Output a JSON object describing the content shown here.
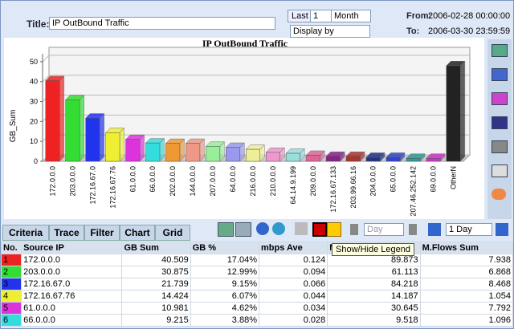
{
  "toolbar": {
    "title_label": "Title:",
    "title_value": "IP OutBound Traffic",
    "last_button": "Last",
    "count": "1",
    "period": "Month",
    "display_by": "Display by",
    "from_label": "From:",
    "from_value": "2006-02-28 00:00:00",
    "to_label": "To:",
    "to_value": "2006-03-30 23:59:59"
  },
  "chart_data": {
    "type": "bar",
    "title": "IP OutBound Traffic",
    "y_label": "GB_Sum",
    "categories": [
      "172.0.0.0",
      "203.0.0.0",
      "172.16.67.0",
      "172.16.67.76",
      "61.0.0.0",
      "66.0.0.0",
      "202.0.0.0",
      "144.0.0.0",
      "207.0.0.0",
      "64.0.0.0",
      "216.0.0.0",
      "210.0.0.0",
      "64.14.9.199",
      "209.0.0.0",
      "172.16.67.133",
      "203.99.66.16",
      "204.0.0.0",
      "65.0.0.0",
      "207.46.252.142",
      "69.0.0.0",
      "OtherN"
    ],
    "values": [
      40.5,
      30.9,
      21.7,
      14.4,
      11,
      9.2,
      9,
      9,
      7.5,
      7,
      6,
      4.5,
      4,
      3,
      2.5,
      2.5,
      2,
      2,
      1.5,
      1.5,
      48
    ],
    "colors": [
      "#ee2222",
      "#33dd33",
      "#2233ee",
      "#eeee33",
      "#dd33dd",
      "#33dddd",
      "#ee9933",
      "#ee9988",
      "#99ee99",
      "#9999ee",
      "#eeee99",
      "#ee99cc",
      "#99dddd",
      "#dd6699",
      "#882288",
      "#aa3333",
      "#223388",
      "#3344cc",
      "#339999",
      "#cc33cc",
      "#222222"
    ],
    "ylim": [
      0,
      54
    ],
    "yticks": [
      0,
      10,
      20,
      30,
      40,
      50
    ],
    "grid": true
  },
  "tabs": [
    "Criteria",
    "Trace",
    "Filter",
    "Chart",
    "Grid"
  ],
  "controls": {
    "unit": "Day",
    "range": "1 Day",
    "tooltip": "Show/Hide Legend"
  },
  "table": {
    "headers": [
      "No.",
      "Source IP",
      "GB Sum",
      "GB %",
      "mbps Ave",
      "M.P",
      "M.Flows Sum"
    ],
    "row_colors": [
      "#ee2222",
      "#33dd33",
      "#2233ee",
      "#eeee33",
      "#dd33dd",
      "#33dddd"
    ],
    "rows": [
      [
        "1",
        "172.0.0.0",
        "40.509",
        "17.04%",
        "0.124",
        "89.873",
        "7.938"
      ],
      [
        "2",
        "203.0.0.0",
        "30.875",
        "12.99%",
        "0.094",
        "61.113",
        "6.868"
      ],
      [
        "3",
        "172.16.67.0",
        "21.739",
        "9.15%",
        "0.066",
        "84.218",
        "8.468"
      ],
      [
        "4",
        "172.16.67.76",
        "14.424",
        "6.07%",
        "0.044",
        "14.187",
        "1.054"
      ],
      [
        "5",
        "61.0.0.0",
        "10.981",
        "4.62%",
        "0.034",
        "30.645",
        "7.792"
      ],
      [
        "6",
        "66.0.0.0",
        "9.215",
        "3.88%",
        "0.028",
        "9.518",
        "1.096"
      ]
    ]
  }
}
